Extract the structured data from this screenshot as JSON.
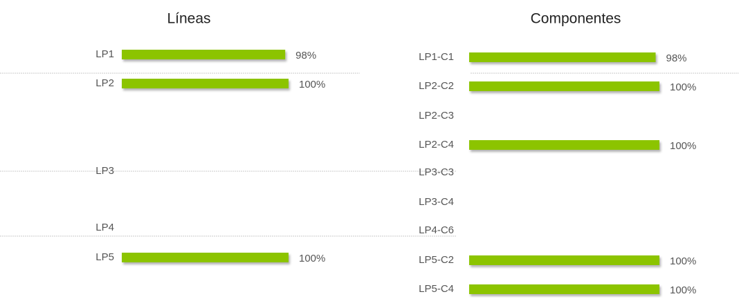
{
  "chart_data": [
    {
      "type": "bar",
      "orientation": "horizontal",
      "title": "Líneas",
      "categories": [
        "LP1",
        "LP2",
        "LP3",
        "LP4",
        "LP5"
      ],
      "values": [
        98,
        100,
        0,
        0,
        100
      ],
      "value_labels": [
        "98%",
        "100%",
        null,
        null,
        "100%"
      ],
      "color": "#8cc400",
      "xlim": [
        0,
        100
      ]
    },
    {
      "type": "bar",
      "orientation": "horizontal",
      "title": "Componentes",
      "categories": [
        "LP1-C1",
        "LP2-C2",
        "LP2-C3",
        "LP2-C4",
        "LP3-C3",
        "LP3-C4",
        "LP4-C6",
        "LP5-C2",
        "LP5-C4"
      ],
      "values": [
        98,
        100,
        0,
        100,
        0,
        0,
        0,
        100,
        100
      ],
      "value_labels": [
        "98%",
        "100%",
        null,
        "100%",
        null,
        null,
        null,
        "100%",
        "100%"
      ],
      "color": "#8cc400",
      "xlim": [
        0,
        100
      ]
    }
  ]
}
